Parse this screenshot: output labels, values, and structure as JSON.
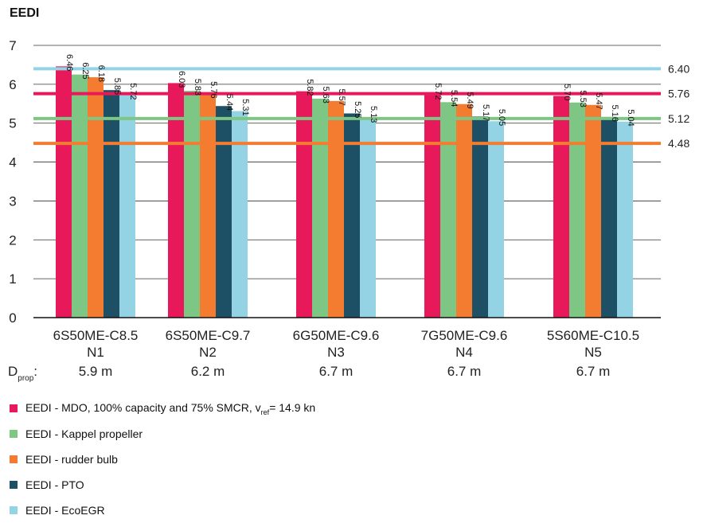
{
  "chart_data": {
    "type": "bar",
    "title": "EEDI",
    "ylim": [
      0,
      7
    ],
    "yticks": [
      "0",
      "1",
      "2",
      "3",
      "4",
      "5",
      "6",
      "7"
    ],
    "categories": [
      {
        "engine": "6S50ME-C8.5",
        "name": "N1",
        "dprop": "5.9 m"
      },
      {
        "engine": "6S50ME-C9.7",
        "name": "N2",
        "dprop": "6.2 m"
      },
      {
        "engine": "6G50ME-C9.6",
        "name": "N3",
        "dprop": "6.7 m"
      },
      {
        "engine": "7G50ME-C9.6",
        "name": "N4",
        "dprop": "6.7 m"
      },
      {
        "engine": "5S60ME-C10.5",
        "name": "N5",
        "dprop": "6.7 m"
      }
    ],
    "dprop_label": {
      "main": "D",
      "sub": "prop",
      "suffix": ":"
    },
    "series": [
      {
        "name": "EEDI - MDO, 100% capacity and 75% SMCR, v",
        "name_sub": "ref",
        "name_suffix": "= 14.9 kn",
        "color": "#e8195a",
        "values": [
          6.46,
          6.03,
          5.82,
          5.72,
          5.7
        ],
        "labels": [
          "6.46",
          "6.03",
          "5.82",
          "5.72",
          "5.70"
        ]
      },
      {
        "name": "EEDI - Kappel propeller",
        "color": "#7dc683",
        "values": [
          6.25,
          5.83,
          5.63,
          5.54,
          5.53
        ],
        "labels": [
          "6.25",
          "5.83",
          "5.63",
          "5.54",
          "5.53"
        ]
      },
      {
        "name": "EEDI - rudder bulb",
        "color": "#f47c30",
        "values": [
          6.18,
          5.76,
          5.57,
          5.49,
          5.47
        ],
        "labels": [
          "6.18",
          "5.76",
          "5.57",
          "5.49",
          "5.47"
        ]
      },
      {
        "name": "EEDI - PTO",
        "color": "#1d5064",
        "values": [
          5.85,
          5.44,
          5.25,
          5.17,
          5.16
        ],
        "labels": [
          "5.85",
          "5.44",
          "5.25",
          "5.17",
          "5.16"
        ]
      },
      {
        "name": "EEDI - EcoEGR",
        "color": "#93d3e3",
        "values": [
          5.72,
          5.31,
          5.13,
          5.05,
          5.04
        ],
        "labels": [
          "5.72",
          "5.31",
          "5.13",
          "5.05",
          "5.04"
        ]
      }
    ],
    "reference_lines": [
      {
        "value": 6.4,
        "label": "6.40",
        "color": "#93d3e3"
      },
      {
        "value": 5.76,
        "label": "5.76",
        "color": "#e8195a"
      },
      {
        "value": 5.12,
        "label": "5.12",
        "color": "#7dc683"
      },
      {
        "value": 4.48,
        "label": "4.48",
        "color": "#f47c30"
      }
    ],
    "grid": true
  }
}
